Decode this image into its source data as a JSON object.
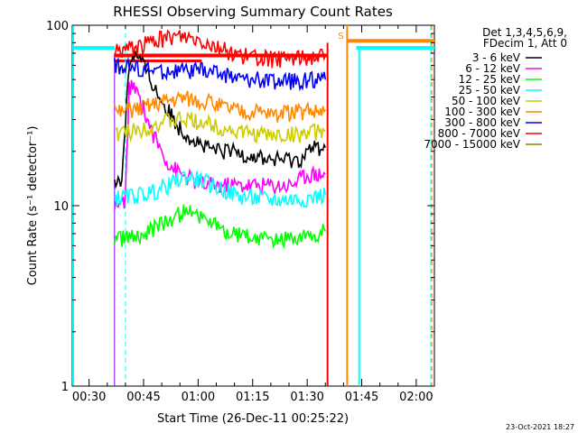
{
  "chart_data": {
    "type": "line",
    "title": "RHESSI Observing Summary Count Rates",
    "xlabel": "Start Time (26-Dec-11 00:25:22)",
    "ylabel": "Count Rate (s⁻¹ detector⁻¹)",
    "yscale": "log",
    "ylim": [
      1,
      100
    ],
    "xlim_minutes": [
      25.37,
      125.0
    ],
    "x_ticks": [
      {
        "minute": 30,
        "label": "00:30"
      },
      {
        "minute": 45,
        "label": "00:45"
      },
      {
        "minute": 60,
        "label": "01:00"
      },
      {
        "minute": 75,
        "label": "01:15"
      },
      {
        "minute": 90,
        "label": "01:30"
      },
      {
        "minute": 105,
        "label": "01:45"
      },
      {
        "minute": 120,
        "label": "02:00"
      }
    ],
    "y_ticks": [
      {
        "value": 1,
        "label": "1"
      },
      {
        "value": 10,
        "label": "10"
      },
      {
        "value": 100,
        "label": "100"
      }
    ],
    "legend_header": [
      "Det 1,3,4,5,6,9,",
      "FDecim 1, Att 0"
    ],
    "legend_placement": "right",
    "series": [
      {
        "name": "3 - 6 keV",
        "color": "#000000",
        "x": [
          37,
          39,
          40,
          41,
          42,
          44,
          46,
          48,
          50,
          52,
          55,
          58,
          62,
          66,
          70,
          75,
          80,
          85,
          88,
          90,
          92,
          95
        ],
        "y": [
          13,
          14,
          30,
          60,
          70,
          65,
          55,
          45,
          38,
          33,
          27,
          24,
          21,
          20,
          20,
          19,
          18,
          18,
          18,
          20,
          21,
          21
        ]
      },
      {
        "name": "6 - 12 keV",
        "color": "#ff00ff",
        "x": [
          37,
          39,
          40,
          41,
          42,
          44,
          46,
          48,
          50,
          52,
          55,
          58,
          62,
          66,
          70,
          75,
          80,
          85,
          88,
          90,
          92,
          95
        ],
        "y": [
          10,
          10,
          11,
          45,
          45,
          40,
          30,
          24,
          20,
          17,
          15,
          14,
          13,
          13,
          13,
          13,
          13,
          13,
          14,
          15,
          15,
          15
        ]
      },
      {
        "name": "12 - 25 keV",
        "color": "#00ff00",
        "x": [
          37,
          40,
          44,
          48,
          52,
          56,
          60,
          64,
          68,
          72,
          76,
          80,
          84,
          88,
          92,
          95
        ],
        "y": [
          6.5,
          6.6,
          6.8,
          7.5,
          8.5,
          9.2,
          9.0,
          8.0,
          7.0,
          6.8,
          6.6,
          6.6,
          6.6,
          6.7,
          7.0,
          7.2
        ]
      },
      {
        "name": "25 - 50 keV",
        "color": "#00ffff",
        "x": [
          37,
          40,
          44,
          48,
          52,
          56,
          60,
          64,
          68,
          72,
          76,
          80,
          84,
          88,
          92,
          95
        ],
        "y": [
          11,
          11.2,
          11.5,
          12.0,
          13.0,
          14.5,
          14.0,
          13.0,
          12.0,
          11.2,
          11.0,
          10.8,
          10.8,
          10.9,
          11.2,
          11.5
        ]
      },
      {
        "name": "50 - 100 keV",
        "color": "#cccc00",
        "x": [
          37,
          40,
          44,
          48,
          52,
          56,
          60,
          64,
          68,
          72,
          76,
          80,
          84,
          88,
          92,
          95
        ],
        "y": [
          25,
          25.5,
          26.5,
          28,
          29.5,
          30,
          29.5,
          28,
          26.5,
          25.5,
          25,
          24.5,
          24.5,
          25,
          25.5,
          26
        ]
      },
      {
        "name": "100 - 300 keV",
        "color": "#ff8800",
        "x": [
          37,
          40,
          44,
          48,
          52,
          56,
          60,
          64,
          68,
          72,
          76,
          80,
          84,
          88,
          92,
          95
        ],
        "y": [
          33,
          33.5,
          35,
          37,
          39,
          40,
          39,
          37,
          35,
          33.5,
          33,
          32.5,
          32.5,
          33,
          33.5,
          34
        ]
      },
      {
        "name": "300 - 800 keV",
        "color": "#0000ff",
        "x": [
          37,
          40,
          44,
          48,
          52,
          56,
          60,
          64,
          68,
          72,
          76,
          80,
          84,
          88,
          92,
          95
        ],
        "y": [
          60,
          59,
          57,
          56,
          55,
          55.5,
          56,
          55,
          53,
          51,
          50,
          49,
          49,
          49.5,
          50,
          50
        ]
      },
      {
        "name": "800 - 7000 keV",
        "color": "#ff0000",
        "x": [
          37,
          40,
          44,
          48,
          52,
          56,
          60,
          64,
          68,
          72,
          76,
          80,
          84,
          88,
          92,
          95
        ],
        "y": [
          72,
          74,
          77,
          82,
          86,
          87,
          84,
          78,
          72,
          68,
          66,
          65,
          65,
          66,
          67,
          68
        ]
      },
      {
        "name": "7000 - 15000 keV",
        "color": "#808000",
        "x": [],
        "y": []
      }
    ],
    "grid": false,
    "markers": {
      "saa_label": "S",
      "night_bars_cyan": [
        [
          25.37,
          37.0
        ],
        [
          103.5,
          125.0
        ]
      ],
      "level_cyan": 75,
      "level_orange": 82,
      "orange_band": [
        101.0,
        125.0
      ],
      "red_band": [
        37.0,
        95.6
      ],
      "dashed_cyan_minutes": [
        40.0,
        124.0
      ],
      "orange_dashed_minute": 124.3,
      "solid_cyan_minute": 104.3,
      "purple_minute": 37.0,
      "orange_solid_minute": 101.0,
      "red_solid_minute": 95.6
    }
  },
  "footer": {
    "timestamp": "23-Oct-2021 18:27"
  }
}
